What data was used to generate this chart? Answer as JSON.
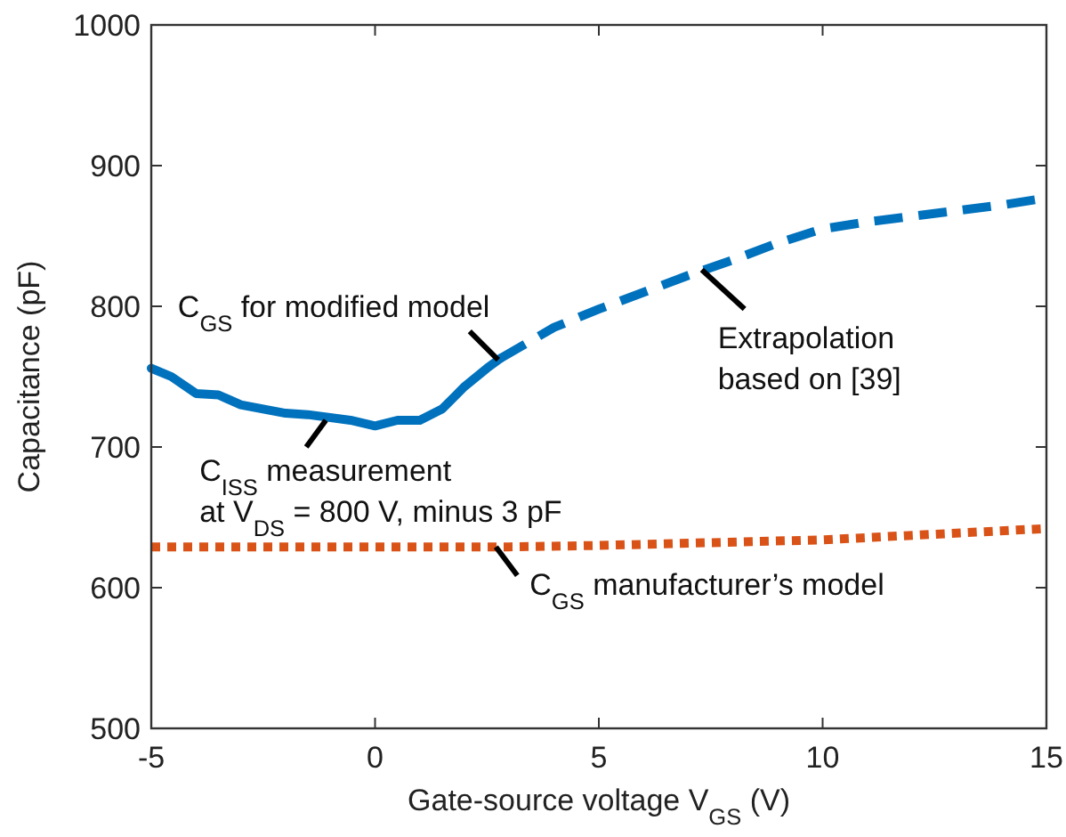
{
  "chart_data": {
    "type": "line",
    "xlabel": "Gate-source voltage V$_{GS}$ (V)",
    "ylabel": "Capacitance (pF)",
    "xlim": [
      -5,
      15
    ],
    "xticks": [
      -5,
      0,
      5,
      10,
      15
    ],
    "ylim": [
      500,
      1000
    ],
    "yticks": [
      500,
      600,
      700,
      800,
      900,
      1000
    ],
    "grid": false,
    "series": [
      {
        "color": "#0072bd",
        "line_style": "solid",
        "x": [
          -5,
          -4.55,
          -4,
          -3.5,
          -3,
          -2,
          -1.5,
          -0.55,
          0,
          0.5,
          1,
          1.5,
          2,
          2.5,
          2.8
        ],
        "values": [
          756,
          750,
          738,
          737,
          730,
          724,
          723,
          719,
          715,
          719,
          719,
          727,
          743,
          756,
          763
        ]
      },
      {
        "color": "#0072bd",
        "line_style": "dashed",
        "x": [
          2.8,
          4,
          5,
          6,
          7,
          8,
          9,
          10,
          11,
          12,
          13,
          14,
          15
        ],
        "values": [
          763,
          785,
          798,
          810,
          822,
          833,
          845,
          855,
          860,
          864,
          868,
          872,
          877
        ]
      },
      {
        "color": "#d95319",
        "line_style": "dotted",
        "x": [
          -5,
          0,
          3,
          5,
          7.5,
          10,
          12.5,
          15
        ],
        "values": [
          629,
          629,
          629,
          630,
          632,
          634,
          638,
          642
        ]
      }
    ],
    "annotations": [
      {
        "text": "C$_{GS}$ for modified model",
        "x": 2.75,
        "y": 762
      },
      {
        "text": "Extrapolation\nbased on [39]",
        "x": 7.3,
        "y": 826
      },
      {
        "text": "C$_{ISS}$ measurement\nat V$_{DS}$ = 800 V, minus 3 pF",
        "x": -1.1,
        "y": 719
      },
      {
        "text": "C$_{GS}$ manufacturer’s model",
        "x": 2.7,
        "y": 629
      }
    ]
  }
}
